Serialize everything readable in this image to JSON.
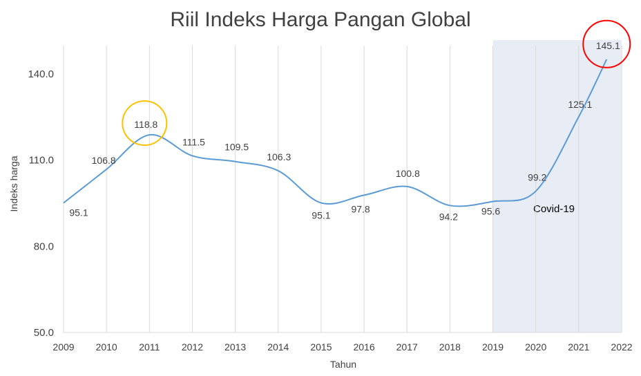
{
  "chart_data": {
    "type": "line",
    "title": "Riil Indeks Harga Pangan Global",
    "xlabel": "Tahun",
    "ylabel": "Indeks harga",
    "xlim": [
      2009,
      2022
    ],
    "ylim": [
      50,
      140
    ],
    "x_ticks": [
      "2009",
      "2010",
      "2011",
      "2012",
      "2013",
      "2014",
      "2015",
      "2016",
      "2017",
      "2018",
      "2019",
      "2020",
      "2021",
      "2022"
    ],
    "y_ticks": [
      "50.0",
      "80.0",
      "110.0",
      "140.0"
    ],
    "grid": "vertical",
    "smooth": true,
    "series": [
      {
        "color": "#5b9bd5",
        "x": [
          2009,
          2010,
          2011,
          2012,
          2013,
          2014,
          2015,
          2016,
          2017,
          2018,
          2019,
          2020,
          2021,
          2021.65
        ],
        "values": [
          95.1,
          106.8,
          118.8,
          111.5,
          109.5,
          106.3,
          95.1,
          97.8,
          100.8,
          94.2,
          95.6,
          99.2,
          125.1,
          145.1
        ],
        "labels": [
          "95.1",
          "106.8",
          "118.8",
          "111.5",
          "109.5",
          "106.3",
          "95.1",
          "97.8",
          "100.8",
          "94.2",
          "95.6",
          "99.2",
          "125.1",
          "145.1"
        ]
      }
    ],
    "shaded_region": {
      "x_from": 2019,
      "x_to": 2022,
      "label": "Covid-19",
      "color": "#e8edf5"
    },
    "highlights": [
      {
        "label_index": 2,
        "color": "#ffc000"
      },
      {
        "label_index": 13,
        "color": "#ff0000"
      }
    ]
  }
}
